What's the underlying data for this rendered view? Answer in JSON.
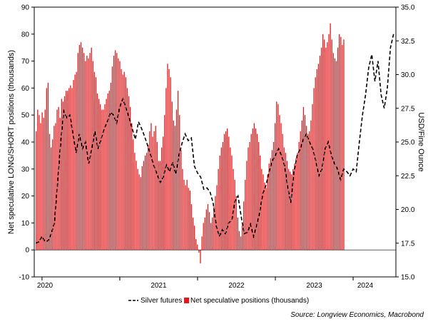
{
  "chart_data": {
    "type": "bar+line",
    "title": "",
    "xlabel": "",
    "ylabel_left": "Net speculative LONG/SHORT positions (thousands)",
    "ylabel_right": "USD/Fine Ounce",
    "ylim_left": [
      -10,
      90
    ],
    "ylim_right": [
      15,
      35
    ],
    "yticks_left": [
      "-10",
      "0",
      "10",
      "20",
      "30",
      "40",
      "50",
      "60",
      "70",
      "80",
      "90"
    ],
    "yticks_right": [
      "15.0",
      "17.5",
      "20.0",
      "22.5",
      "25.0",
      "27.5",
      "30.0",
      "32.5",
      "35.0"
    ],
    "x_range": [
      2019.9,
      2024.55
    ],
    "xticks": [
      "2020",
      "2021",
      "2022",
      "2023",
      "2024"
    ],
    "grid": false,
    "legend_position": "bottom",
    "source": "Source: Longview Economics, Macrobond",
    "series": [
      {
        "name": "Silver futures",
        "kind": "line",
        "axis": "right",
        "color": "#000000",
        "dash": "dashed",
        "x": [
          2019.92,
          2019.96,
          2020.0,
          2020.04,
          2020.08,
          2020.12,
          2020.16,
          2020.2,
          2020.24,
          2020.28,
          2020.32,
          2020.36,
          2020.4,
          2020.44,
          2020.48,
          2020.52,
          2020.56,
          2020.6,
          2020.64,
          2020.68,
          2020.72,
          2020.76,
          2020.8,
          2020.84,
          2020.88,
          2020.92,
          2020.96,
          2021.0,
          2021.04,
          2021.08,
          2021.12,
          2021.16,
          2021.2,
          2021.24,
          2021.28,
          2021.32,
          2021.36,
          2021.4,
          2021.44,
          2021.48,
          2021.52,
          2021.56,
          2021.6,
          2021.64,
          2021.68,
          2021.72,
          2021.76,
          2021.8,
          2021.84,
          2021.88,
          2021.92,
          2021.96,
          2022.0,
          2022.04,
          2022.08,
          2022.12,
          2022.16,
          2022.2,
          2022.24,
          2022.28,
          2022.32,
          2022.36,
          2022.4,
          2022.44,
          2022.48,
          2022.52,
          2022.56,
          2022.6,
          2022.64,
          2022.68,
          2022.72,
          2022.76,
          2022.8,
          2022.84,
          2022.88,
          2022.92,
          2022.96,
          2023.0,
          2023.04,
          2023.08,
          2023.12,
          2023.16,
          2023.2,
          2023.24,
          2023.28,
          2023.32,
          2023.36,
          2023.4,
          2023.44,
          2023.48,
          2023.52,
          2023.56,
          2023.6,
          2023.64,
          2023.68,
          2023.72,
          2023.76,
          2023.8,
          2023.84,
          2023.88,
          2023.92,
          2023.96,
          2024.0,
          2024.04,
          2024.08,
          2024.12,
          2024.16,
          2024.2,
          2024.24,
          2024.28,
          2024.32,
          2024.36,
          2024.4,
          2024.44,
          2024.48
        ],
        "values": [
          17.5,
          17.6,
          18.0,
          17.6,
          17.7,
          18.2,
          19.0,
          22.0,
          25.0,
          27.3,
          26.8,
          27.0,
          25.5,
          24.2,
          25.6,
          24.5,
          25.0,
          23.4,
          24.5,
          25.8,
          24.5,
          25.2,
          26.0,
          26.5,
          27.2,
          27.0,
          26.4,
          27.6,
          28.2,
          27.5,
          26.8,
          26.0,
          25.2,
          26.5,
          26.0,
          25.4,
          24.7,
          24.0,
          23.2,
          22.6,
          22.0,
          22.4,
          23.3,
          22.8,
          23.5,
          22.6,
          24.0,
          24.9,
          25.6,
          25.1,
          25.3,
          23.2,
          22.7,
          22.4,
          21.5,
          21.6,
          21.3,
          20.5,
          18.8,
          18.0,
          18.5,
          18.2,
          19.0,
          19.2,
          20.6,
          21.0,
          19.5,
          18.2,
          18.3,
          18.9,
          18.0,
          18.8,
          19.8,
          21.2,
          21.8,
          22.8,
          23.6,
          24.0,
          24.5,
          24.0,
          23.2,
          21.6,
          20.5,
          22.8,
          24.0,
          24.5,
          25.2,
          25.6,
          25.0,
          24.5,
          23.6,
          22.5,
          23.0,
          24.5,
          25.0,
          24.0,
          23.4,
          23.0,
          22.2,
          23.0,
          22.8,
          22.5,
          22.6,
          23.6,
          24.8,
          24.0,
          23.2,
          22.5,
          23.0,
          22.8,
          23.0,
          22.6,
          22.5,
          22.4,
          22.8
        ],
        "x_2024": [
          2024.0,
          2024.04,
          2024.08,
          2024.12,
          2024.16,
          2024.2,
          2024.24,
          2024.28,
          2024.32,
          2024.36,
          2024.4,
          2024.44,
          2024.48,
          2024.52
        ],
        "values_2024": [
          23.0,
          22.8,
          25.0,
          27.0,
          28.5,
          30.5,
          31.5,
          29.5,
          31.0,
          28.5,
          27.5,
          29.0,
          32.0,
          33.0
        ]
      },
      {
        "name": "Net speculative positions (thousands)",
        "kind": "bar",
        "axis": "left",
        "color": "#e31a1c",
        "x_start": 2019.925,
        "x_step": 0.0192,
        "values": [
          44,
          52,
          50,
          47,
          51,
          49,
          52,
          60,
          62,
          43,
          38,
          41,
          46,
          47,
          52,
          53,
          49,
          56,
          55,
          57,
          59,
          59,
          60,
          61,
          60,
          63,
          65,
          66,
          73,
          76,
          77,
          75,
          73,
          70,
          72,
          71,
          73,
          75,
          70,
          66,
          64,
          58,
          56,
          54,
          52,
          52,
          54,
          56,
          58,
          59,
          62,
          68,
          72,
          74,
          73,
          71,
          70,
          67,
          65,
          66,
          64,
          60,
          57,
          53,
          47,
          41,
          36,
          33,
          30,
          28,
          27,
          31,
          33,
          35,
          36,
          39,
          44,
          47,
          42,
          44,
          46,
          40,
          33,
          33,
          38,
          42,
          50,
          60,
          69,
          67,
          64,
          55,
          48,
          46,
          52,
          59,
          50,
          37,
          30,
          26,
          24,
          26,
          23,
          22,
          17,
          12,
          9,
          4,
          2,
          -1,
          -5,
          5,
          10,
          12,
          15,
          17,
          14,
          10,
          12,
          16,
          20,
          24,
          30,
          35,
          38,
          40,
          43,
          44,
          45,
          42,
          38,
          35,
          30,
          26,
          20,
          12,
          7,
          5,
          9,
          18,
          26,
          33,
          38,
          40,
          43,
          45,
          47,
          45,
          43,
          40,
          35,
          30,
          28,
          25,
          23,
          28,
          32,
          34,
          37,
          40,
          47,
          55,
          54,
          50,
          47,
          43,
          38,
          36,
          33,
          30,
          29,
          28,
          30,
          32,
          34,
          36,
          40,
          44,
          48,
          53,
          50,
          46,
          43,
          44,
          48,
          54,
          60,
          64,
          67,
          69,
          72,
          75,
          80,
          78,
          75,
          77,
          80,
          84,
          78,
          73,
          71,
          70,
          75,
          80,
          79,
          76,
          78
        ]
      }
    ]
  }
}
